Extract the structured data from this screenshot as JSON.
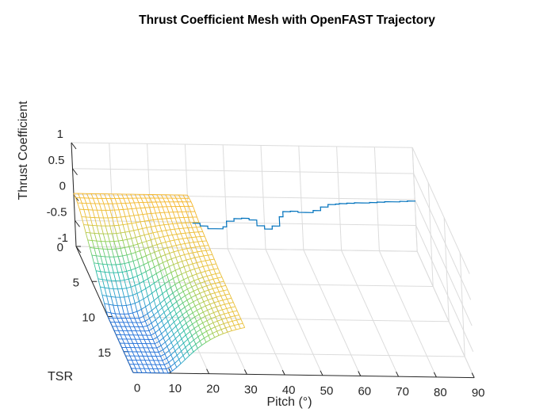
{
  "chart_data": {
    "type": "surface-mesh-3d",
    "title": "Thrust Coefficient Mesh with OpenFAST Trajectory",
    "xlabel": "Pitch (°)",
    "ylabel": "TSR",
    "zlabel": "Thrust Coefficient",
    "xlim": [
      0,
      90
    ],
    "ylim": [
      0,
      18
    ],
    "zlim": [
      -1,
      1
    ],
    "x_ticks": [
      "0",
      "10",
      "20",
      "30",
      "40",
      "50",
      "60",
      "70",
      "80",
      "90"
    ],
    "y_ticks": [
      "0",
      "5",
      "10",
      "15"
    ],
    "z_ticks": [
      "-1",
      "-0.5",
      "0",
      "0.5",
      "1"
    ],
    "grid": true,
    "mesh": {
      "pitch_range": [
        0,
        30
      ],
      "tsr_range": [
        0,
        18
      ],
      "pitch_steps": 26,
      "tsr_steps": 30,
      "colormap": [
        "#1f6fd8",
        "#27a3c9",
        "#2bbf9f",
        "#7ed05b",
        "#e6c23a",
        "#f6b52a"
      ],
      "peak_ct": 0.06,
      "min_ct": -1.0
    },
    "trajectory": {
      "color": "#0072bd",
      "pitch": [
        31,
        33,
        35,
        37,
        39,
        40,
        42,
        44,
        46,
        48,
        50,
        52,
        54,
        55,
        57,
        59,
        61,
        63,
        65,
        67,
        69,
        70,
        72,
        74,
        76,
        78,
        80,
        82,
        84,
        86,
        88,
        90
      ],
      "ct": [
        -0.52,
        -0.57,
        -0.62,
        -0.62,
        -0.58,
        -0.47,
        -0.42,
        -0.41,
        -0.44,
        -0.55,
        -0.61,
        -0.55,
        -0.37,
        -0.27,
        -0.26,
        -0.28,
        -0.28,
        -0.24,
        -0.17,
        -0.12,
        -0.11,
        -0.1,
        -0.09,
        -0.08,
        -0.08,
        -0.07,
        -0.06,
        -0.05,
        -0.05,
        -0.04,
        -0.03,
        -0.02
      ]
    }
  }
}
